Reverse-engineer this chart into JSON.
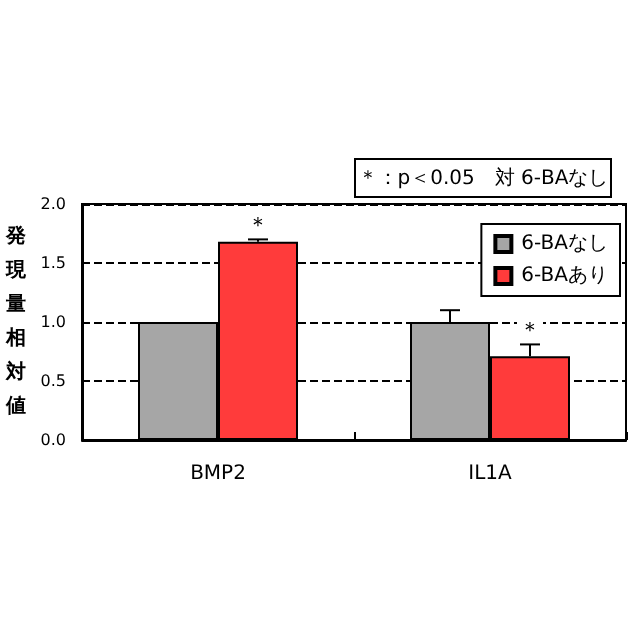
{
  "chart_data": {
    "type": "bar",
    "ylabel": "発現量相対値",
    "categories": [
      "BMP2",
      "IL1A"
    ],
    "series": [
      {
        "name": "6-BAなし",
        "color": "#a6a6a6",
        "values": [
          1.0,
          1.0
        ],
        "errors": [
          null,
          0.1
        ]
      },
      {
        "name": "6-BAあり",
        "color": "#ff3b3b",
        "values": [
          1.68,
          0.71
        ],
        "errors": [
          0.02,
          0.1
        ]
      }
    ],
    "ylim": [
      0,
      2
    ],
    "yticks": [
      {
        "value": 0,
        "label": "0.0"
      },
      {
        "value": 0.5,
        "label": "0.5"
      },
      {
        "value": 1,
        "label": "1.0"
      },
      {
        "value": 1.5,
        "label": "1.5"
      },
      {
        "value": 2,
        "label": "2.0"
      }
    ],
    "grid": "y",
    "legend": "top right",
    "annotations": [
      "＊：p＜0.05　対 6-BAなし",
      {
        "text": "＊",
        "x": "BMP2",
        "y": 1.68
      },
      {
        "text": "＊",
        "x": "IL1A",
        "y": 0.71
      }
    ]
  }
}
